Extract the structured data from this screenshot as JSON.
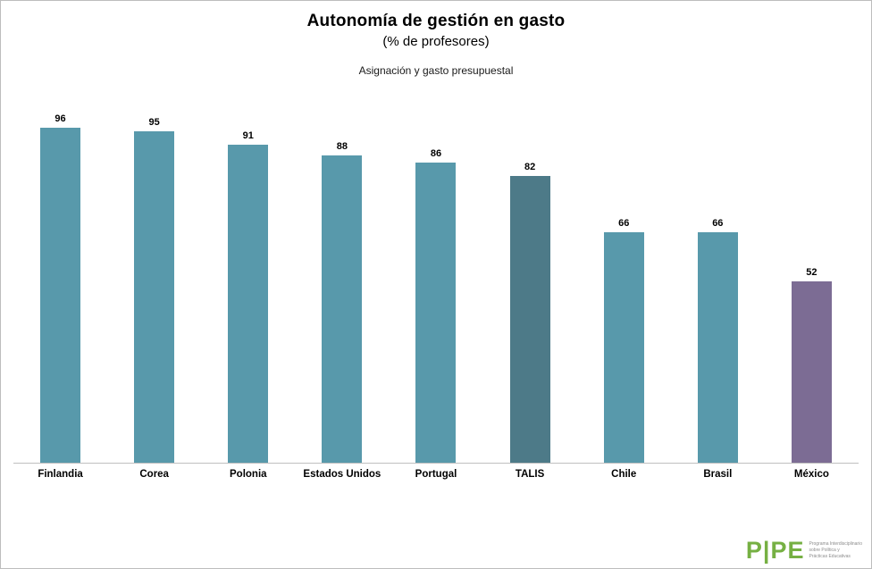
{
  "header": {
    "title": "Autonomía de gestión en gasto",
    "subtitle": "(% de profesores)",
    "caption": "Asignación y gasto presupuestal"
  },
  "chart_data": {
    "type": "bar",
    "title": "Autonomía de gestión en gasto",
    "subtitle": "(% de profesores)",
    "annotation": "Asignación y gasto presupuestal",
    "categories": [
      "Finlandia",
      "Corea",
      "Polonia",
      "Estados Unidos",
      "Portugal",
      "TALIS",
      "Chile",
      "Brasil",
      "México"
    ],
    "values": [
      96,
      95,
      91,
      88,
      86,
      82,
      66,
      66,
      52
    ],
    "bar_colors": [
      "#5899ab",
      "#5899ab",
      "#5899ab",
      "#5899ab",
      "#5899ab",
      "#4d7a88",
      "#5899ab",
      "#5899ab",
      "#7c6c94"
    ],
    "data_labels": true,
    "xlabel": "",
    "ylabel": "",
    "ylim": [
      0,
      100
    ],
    "grid": false,
    "legend": "none"
  },
  "colors": {
    "bar_default": "#5899ab",
    "bar_highlight_talis": "#4d7a88",
    "bar_highlight_mexico": "#7c6c94",
    "axis_line": "#bfbfbf",
    "frame_border": "#bdbdbd",
    "logo_green": "#76b043"
  },
  "logo": {
    "text": "P|PE",
    "tagline_lines": [
      "Programa Interdisciplinario",
      "sobre Política y",
      "Prácticas Educativas"
    ]
  }
}
